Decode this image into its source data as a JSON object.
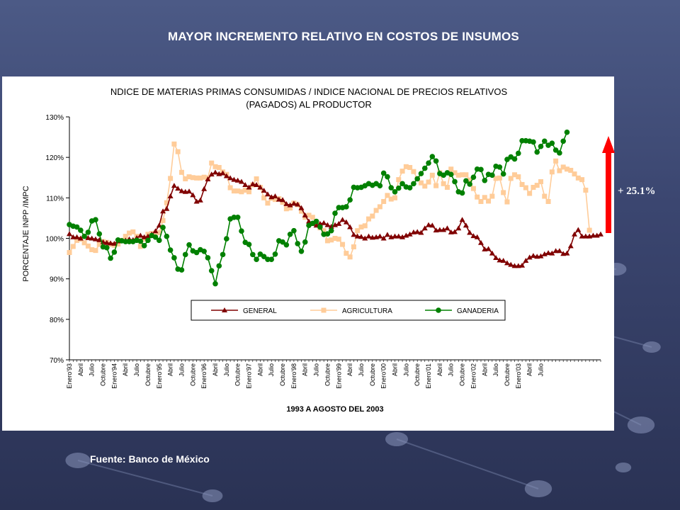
{
  "slide": {
    "title": "MAYOR INCREMENTO RELATIVO EN COSTOS DE INSUMOS",
    "source": "Fuente: Banco de México",
    "growth_label": "+ 25.1%"
  },
  "colors": {
    "general": "#800000",
    "agricultura": "#ffcc99",
    "ganaderia": "#008000",
    "arrow": "#ff0000"
  },
  "chart_data": {
    "type": "line",
    "title_line1": "NDICE DE MATERIAS PRIMAS CONSUMIDAS / INDICE NACIONAL DE PRECIOS RELATIVOS",
    "title_line2": "(PAGADOS) AL PRODUCTOR",
    "ylabel": "PORCENTAJE INPP /IMPC",
    "xlabel": "1993 A AGOSTO DEL 2003",
    "ylim": [
      70,
      130
    ],
    "yticks": [
      "70%",
      "80%",
      "90%",
      "100%",
      "110%",
      "120%",
      "130%"
    ],
    "grid": false,
    "legend_position": "bottom-center",
    "x_tick_labels": [
      "Enero'93",
      "Abril",
      "Julio",
      "Octubre",
      "Enero'94",
      "Abril",
      "Julio",
      "Octubre",
      "Enero'95",
      "Abril",
      "Julio",
      "Octubre",
      "Enero'96",
      "Abril",
      "Julio",
      "Octubre",
      "Enero'97",
      "Abril",
      "Julio",
      "Octubre",
      "Enero'98",
      "Abril",
      "Julio",
      "Octubre",
      "Enero'99",
      "Abril",
      "Julio",
      "Octubre",
      "Enero'00",
      "Abril",
      "Julio",
      "Octubre",
      "Enero'01",
      "Abril",
      "Julio",
      "Octubre",
      "Enero'02",
      "Abril",
      "Julio",
      "Octubre",
      "Enero'03",
      "Abril",
      "Julio"
    ],
    "series": [
      {
        "name": "GENERAL",
        "marker": "triangle",
        "values": [
          101.1,
          100.3,
          100.3,
          100.0,
          100.5,
          100.1,
          100.0,
          99.8,
          99.6,
          99.1,
          98.9,
          98.8,
          98.7,
          99.3,
          99.4,
          99.5,
          99.8,
          99.6,
          100.1,
          100.7,
          100.3,
          100.5,
          101.0,
          101.8,
          103.2,
          106.7,
          107.3,
          110.4,
          113.0,
          112.3,
          111.7,
          111.5,
          111.6,
          110.7,
          109.1,
          109.4,
          112.2,
          114.6,
          115.8,
          116.3,
          115.9,
          116.1,
          115.4,
          114.9,
          114.5,
          114.3,
          114.0,
          113.2,
          112.6,
          113.4,
          113.2,
          112.6,
          111.8,
          110.9,
          110.2,
          110.4,
          109.6,
          109.5,
          108.5,
          108.2,
          108.6,
          108.4,
          107.5,
          105.7,
          104.2,
          103.6,
          103.2,
          103.6,
          103.8,
          103.3,
          102.9,
          103.3,
          103.6,
          104.6,
          104.0,
          102.8,
          100.9,
          100.5,
          100.4,
          100.0,
          100.5,
          100.2,
          100.3,
          100.5,
          100.0,
          100.9,
          100.3,
          100.5,
          100.5,
          100.3,
          100.7,
          101.0,
          101.5,
          101.6,
          101.4,
          102.5,
          103.3,
          103.2,
          102.0,
          102.1,
          102.1,
          102.5,
          101.5,
          101.6,
          102.5,
          104.6,
          103.2,
          101.4,
          100.6,
          100.3,
          98.9,
          97.3,
          97.4,
          96.3,
          95.2,
          94.6,
          94.5,
          93.9,
          93.5,
          93.2,
          93.2,
          93.3,
          94.5,
          95.3,
          95.7,
          95.5,
          95.6,
          96.1,
          96.4,
          96.3,
          96.9,
          96.9,
          96.2,
          96.3,
          98.1,
          101.0,
          102.1,
          100.5,
          100.5,
          100.5,
          100.7,
          100.7,
          101.0
        ]
      },
      {
        "name": "AGRICULTURA",
        "marker": "square",
        "values": [
          96.5,
          98.0,
          99.5,
          99.8,
          98.9,
          98.1,
          97.2,
          97.0,
          98.5,
          99.2,
          99.0,
          98.5,
          98.3,
          98.6,
          99.5,
          100.5,
          101.3,
          101.6,
          100.5,
          98.0,
          99.8,
          101.0,
          101.2,
          101.3,
          101.4,
          104.4,
          108.8,
          114.8,
          123.3,
          121.4,
          116.3,
          114.7,
          115.2,
          115.0,
          114.9,
          114.9,
          115.1,
          114.9,
          118.6,
          117.7,
          117.5,
          116.4,
          115.8,
          112.5,
          111.7,
          111.7,
          111.5,
          111.9,
          111.5,
          113.2,
          114.7,
          112.6,
          110.0,
          108.7,
          109.9,
          109.6,
          109.8,
          108.9,
          107.3,
          107.5,
          108.7,
          108.3,
          106.7,
          105.2,
          105.7,
          105.2,
          103.7,
          102.6,
          101.9,
          99.4,
          99.6,
          100.0,
          99.8,
          98.5,
          96.3,
          95.4,
          97.9,
          101.9,
          102.8,
          103.1,
          104.8,
          105.5,
          106.9,
          107.8,
          109.1,
          110.6,
          109.7,
          110.0,
          114.5,
          116.6,
          117.7,
          117.5,
          116.5,
          114.7,
          113.7,
          112.9,
          113.9,
          115.6,
          113.0,
          116.2,
          113.5,
          112.6,
          117.1,
          116.2,
          115.6,
          115.7,
          115.7,
          114.4,
          112.3,
          110.2,
          109.1,
          110.1,
          109.2,
          110.4,
          114.8,
          114.9,
          111.3,
          109.0,
          114.8,
          115.7,
          115.2,
          113.3,
          112.5,
          111.1,
          112.6,
          113.1,
          114.0,
          110.4,
          109.1,
          116.4,
          119.1,
          116.7,
          117.6,
          117.1,
          116.8,
          115.9,
          114.9,
          114.5,
          111.9,
          102.0
        ]
      },
      {
        "name": "GANADERIA",
        "marker": "circle",
        "values": [
          103.4,
          103.0,
          102.8,
          102.0,
          100.5,
          101.5,
          104.3,
          104.6,
          101.1,
          97.9,
          97.7,
          95.1,
          96.6,
          99.6,
          99.4,
          99.2,
          99.2,
          99.2,
          99.5,
          99.3,
          98.2,
          99.5,
          100.7,
          100.3,
          99.5,
          102.7,
          100.5,
          97.1,
          95.2,
          92.4,
          92.2,
          96.0,
          98.4,
          96.9,
          96.5,
          97.2,
          96.8,
          95.2,
          92.0,
          88.8,
          93.2,
          96.0,
          99.9,
          104.8,
          105.2,
          105.2,
          101.8,
          99.0,
          98.5,
          96.0,
          94.8,
          96.1,
          95.5,
          94.8,
          94.8,
          96.1,
          99.4,
          99.1,
          98.4,
          101.0,
          101.9,
          98.7,
          96.8,
          99.1,
          103.2,
          103.7,
          104.2,
          102.8,
          101.0,
          101.1,
          101.9,
          106.2,
          107.6,
          107.6,
          107.8,
          109.5,
          112.6,
          112.5,
          112.6,
          113.0,
          113.5,
          113.1,
          113.5,
          113.0,
          116.1,
          115.2,
          112.5,
          111.5,
          112.4,
          113.5,
          112.7,
          112.5,
          113.5,
          114.7,
          116.0,
          117.3,
          118.6,
          120.2,
          119.1,
          116.0,
          115.6,
          116.2,
          115.8,
          114.0,
          111.5,
          111.2,
          114.2,
          113.4,
          115.1,
          117.1,
          117.0,
          114.3,
          115.8,
          115.6,
          117.8,
          117.6,
          115.9,
          119.5,
          120.1,
          119.6,
          121.0,
          124.1,
          124.1,
          124.0,
          123.8,
          121.3,
          122.7,
          124.0,
          123.0,
          123.5,
          121.8,
          121.1,
          124.0,
          126.2
        ]
      }
    ]
  }
}
